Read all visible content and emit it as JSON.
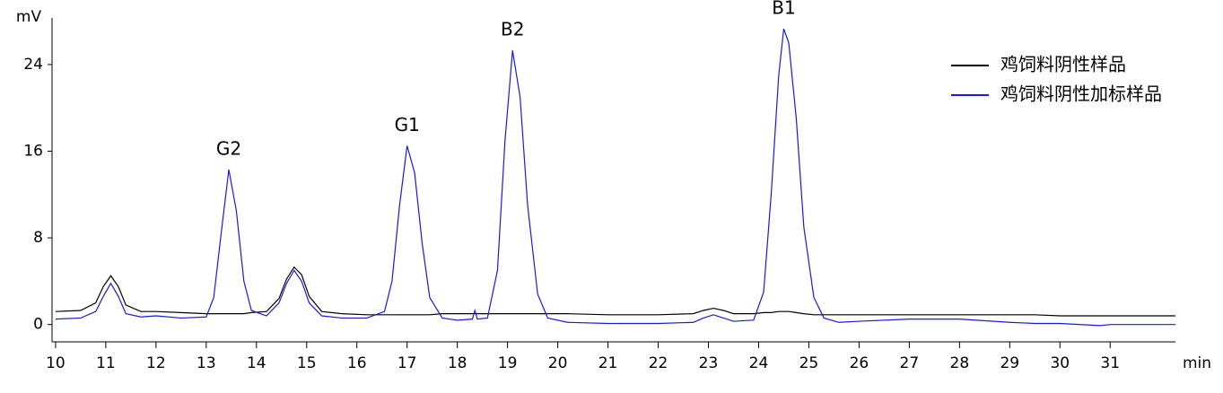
{
  "chart_data": {
    "type": "line",
    "y_label": "mV",
    "x_label": "min",
    "x": [
      10,
      10.5,
      10.8,
      10.95,
      11.1,
      11.25,
      11.4,
      11.7,
      12,
      12.5,
      13,
      13.15,
      13.3,
      13.45,
      13.6,
      13.75,
      13.9,
      14.2,
      14.45,
      14.6,
      14.75,
      14.9,
      15.05,
      15.3,
      15.7,
      16.2,
      16.55,
      16.7,
      16.85,
      17,
      17.15,
      17.3,
      17.45,
      17.7,
      18,
      18.3,
      18.35,
      18.4,
      18.6,
      18.8,
      18.95,
      19.1,
      19.25,
      19.4,
      19.6,
      19.8,
      20.2,
      21,
      22,
      22.7,
      22.9,
      23.1,
      23.3,
      23.5,
      23.9,
      24.1,
      24.25,
      24.4,
      24.5,
      24.6,
      24.75,
      24.9,
      25.1,
      25.3,
      25.6,
      26,
      27,
      28,
      29,
      29.5,
      30,
      30.8,
      31,
      32.3
    ],
    "series": [
      {
        "name": "鸡饲料阴性样品",
        "color": "#000000",
        "values": [
          1.2,
          1.3,
          2.0,
          3.5,
          4.5,
          3.5,
          1.8,
          1.2,
          1.2,
          1.1,
          1.0,
          1.0,
          1.0,
          1.0,
          1.0,
          1.0,
          1.1,
          1.2,
          2.4,
          4.2,
          5.3,
          4.6,
          2.6,
          1.2,
          1.0,
          0.9,
          0.9,
          0.9,
          0.9,
          0.9,
          0.9,
          0.9,
          0.9,
          1.0,
          1.0,
          1.0,
          1.0,
          1.0,
          1.0,
          1.0,
          1.0,
          1.0,
          1.0,
          1.0,
          1.0,
          1.0,
          1.0,
          0.9,
          0.9,
          1.0,
          1.3,
          1.5,
          1.3,
          1.0,
          1.0,
          1.1,
          1.1,
          1.2,
          1.2,
          1.2,
          1.1,
          1.0,
          0.9,
          0.9,
          0.9,
          0.9,
          0.9,
          0.9,
          0.9,
          0.9,
          0.8,
          0.8,
          0.8,
          0.8
        ]
      },
      {
        "name": "鸡饲料阴性加标样品",
        "color": "#1a1adb",
        "values": [
          0.5,
          0.6,
          1.2,
          2.6,
          3.8,
          2.6,
          1.0,
          0.7,
          0.8,
          0.6,
          0.7,
          2.5,
          8.5,
          14.3,
          10.5,
          4.0,
          1.3,
          0.8,
          2.0,
          3.8,
          5.0,
          4.0,
          2.0,
          0.8,
          0.6,
          0.6,
          1.2,
          4.0,
          11,
          16.5,
          14,
          7.5,
          2.5,
          0.6,
          0.4,
          0.5,
          1.3,
          0.5,
          0.6,
          5,
          17,
          25.3,
          21,
          11,
          2.8,
          0.6,
          0.2,
          0.1,
          0.1,
          0.2,
          0.6,
          0.9,
          0.6,
          0.3,
          0.4,
          3,
          12,
          23,
          27.3,
          26,
          19,
          9,
          2.5,
          0.6,
          0.2,
          0.3,
          0.5,
          0.5,
          0.2,
          0.1,
          0.1,
          -0.1,
          0,
          0
        ]
      }
    ],
    "annotations": [
      {
        "text": "G2",
        "x": 13.45
      },
      {
        "text": "G1",
        "x": 17
      },
      {
        "text": "B2",
        "x": 19.1
      },
      {
        "text": "B1",
        "x": 24.5
      }
    ],
    "xlim": [
      9.93,
      32.3
    ],
    "ylim": [
      -1.6,
      28.3
    ],
    "xticks": [
      10,
      11,
      12,
      13,
      14,
      15,
      16,
      17,
      18,
      19,
      20,
      21,
      22,
      23,
      24,
      25,
      26,
      27,
      28,
      29,
      30,
      31
    ],
    "yticks": [
      0,
      8,
      16,
      24
    ],
    "grid": false,
    "legend": "top-right"
  }
}
